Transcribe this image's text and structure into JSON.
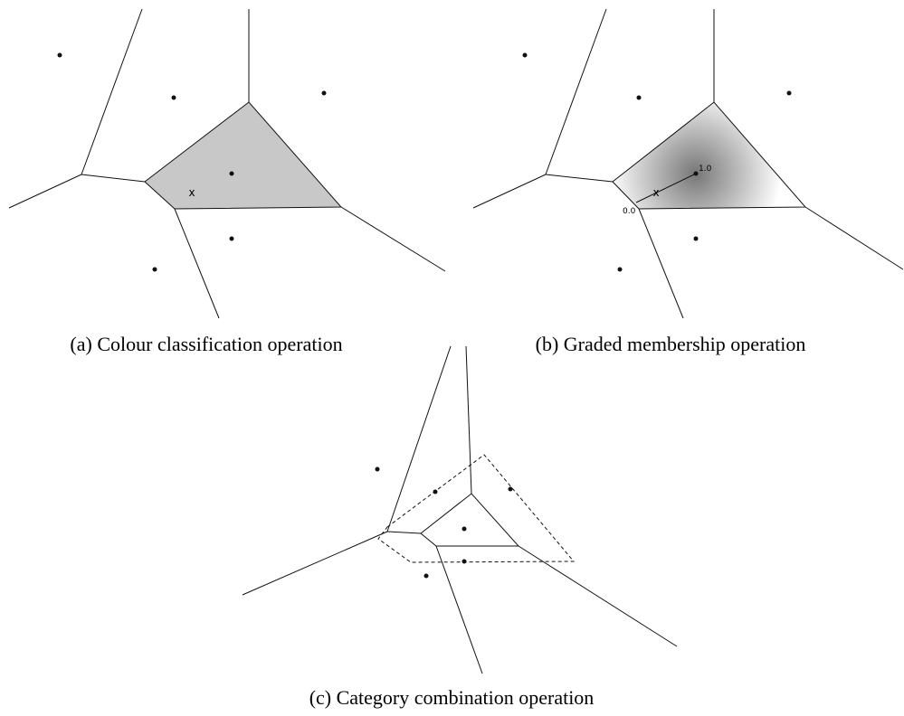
{
  "panels": [
    {
      "caption": "(a) Colour classification operation",
      "marker": "x"
    },
    {
      "caption": "(b) Graded membership operation",
      "marker": "x",
      "scale_start": "0.0",
      "scale_end": "1.0"
    },
    {
      "caption": "(c) Category combination operation"
    }
  ]
}
